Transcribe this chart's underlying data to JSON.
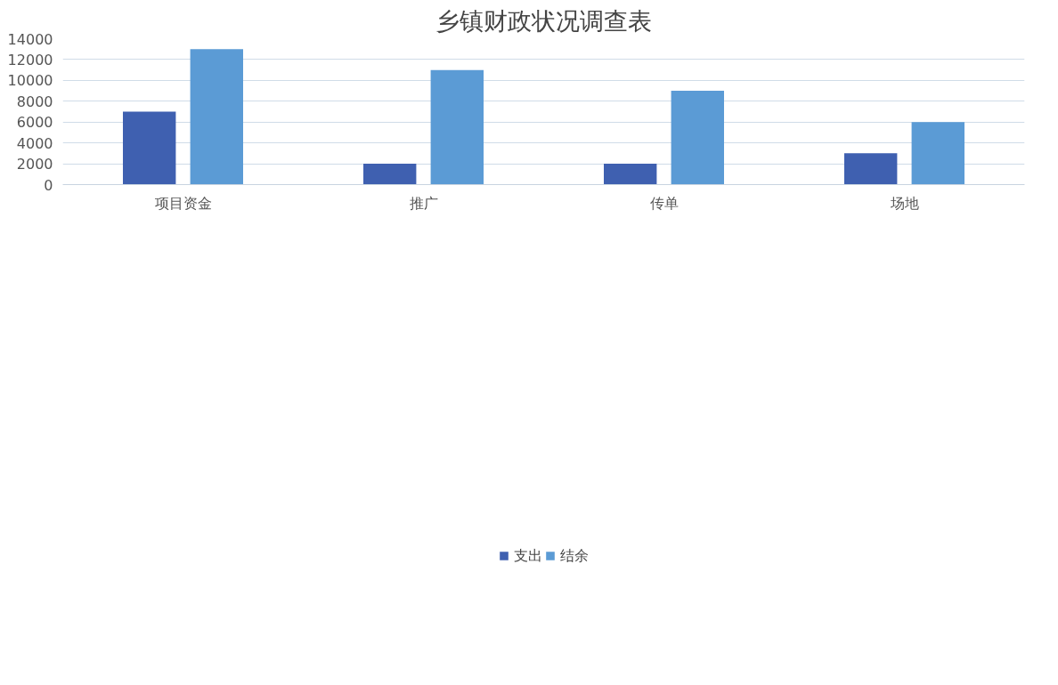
{
  "chart_data": {
    "type": "bar",
    "title": "乡镇财政状况调查表",
    "categories": [
      "项目资金",
      "推广",
      "传单",
      "场地"
    ],
    "series": [
      {
        "name": "支出",
        "color": "#3f60b0",
        "values": [
          7000,
          2000,
          2000,
          3000
        ]
      },
      {
        "name": "结余",
        "color": "#5b9bd5",
        "values": [
          13000,
          11000,
          9000,
          6000
        ]
      }
    ],
    "ylim": [
      0,
      14000
    ],
    "yticks": [
      0,
      2000,
      4000,
      6000,
      8000,
      10000,
      12000,
      14000
    ],
    "grid": "y",
    "legend": "bottom"
  }
}
